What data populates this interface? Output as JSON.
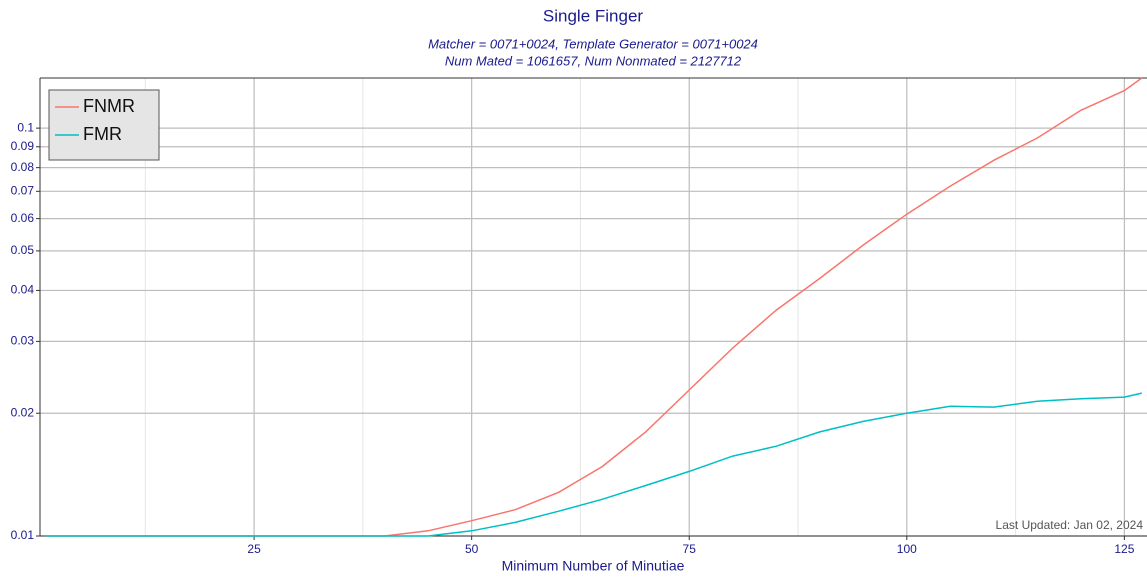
{
  "chart_data": {
    "type": "line",
    "title": "Single Finger",
    "subtitle": [
      "Matcher = 0071+0024, Template Generator = 0071+0024",
      "Num Mated = 1061657, Num Nonmated = 2127712"
    ],
    "x_label": "Minimum Number of Minutiae",
    "annotation": "Last Updated: Jan 02, 2024",
    "x": [
      1,
      5,
      10,
      15,
      20,
      25,
      30,
      35,
      40,
      45,
      50,
      55,
      60,
      65,
      70,
      75,
      80,
      85,
      90,
      95,
      100,
      105,
      110,
      115,
      120,
      125,
      127
    ],
    "series": [
      {
        "name": "FNMR",
        "color": "#f8766d",
        "values": [
          0.01,
          0.01,
          0.01,
          0.01,
          0.01,
          0.01,
          0.01,
          0.01,
          0.01,
          0.0103,
          0.0109,
          0.0116,
          0.0128,
          0.0148,
          0.018,
          0.0228,
          0.0289,
          0.0358,
          0.0428,
          0.0517,
          0.0615,
          0.0721,
          0.0834,
          0.0946,
          0.1106,
          0.1236,
          0.1327
        ]
      },
      {
        "name": "FMR",
        "color": "#00bfc4",
        "values": [
          0.01,
          0.01,
          0.01,
          0.01,
          0.01,
          0.01,
          0.01,
          0.01,
          0.01,
          0.01,
          0.0103,
          0.0108,
          0.0115,
          0.0123,
          0.0133,
          0.0144,
          0.0157,
          0.0166,
          0.018,
          0.0191,
          0.02,
          0.0208,
          0.0207,
          0.0214,
          0.0217,
          0.0219,
          0.0224
        ]
      }
    ],
    "xlim": [
      0.4,
      127.6
    ],
    "xticks": [
      25,
      50,
      75,
      100,
      125
    ],
    "xminorticks": [
      12.5,
      37.5,
      62.5,
      87.5,
      112.5
    ],
    "ylim": [
      0.01,
      0.1327
    ],
    "yticks": [
      0.01,
      0.02,
      0.03,
      0.04,
      0.05,
      0.06,
      0.07,
      0.08,
      0.09,
      0.1
    ],
    "ylog": true,
    "grid": true,
    "legend": "top-left"
  }
}
